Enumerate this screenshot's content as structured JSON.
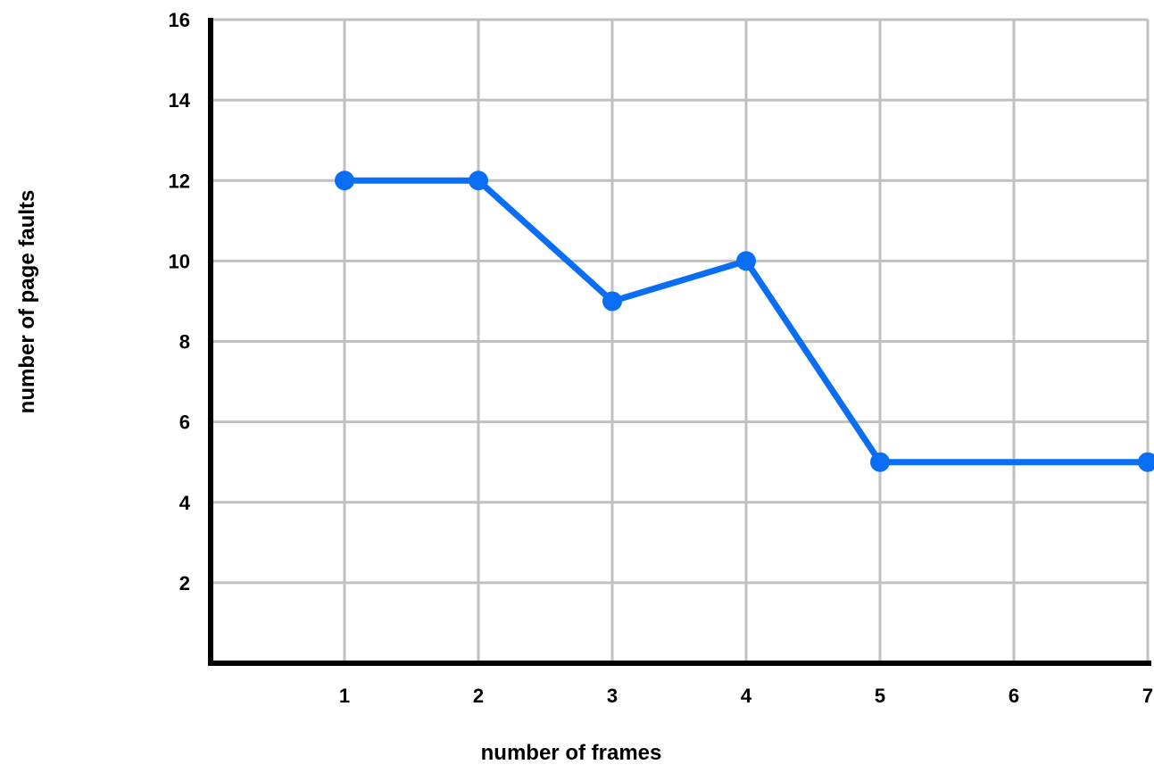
{
  "chart_data": {
    "type": "line",
    "title": "",
    "xlabel": "number of frames",
    "ylabel": "number of page faults",
    "x_ticks": [
      1,
      2,
      3,
      4,
      5,
      6,
      7
    ],
    "y_ticks": [
      2,
      4,
      6,
      8,
      10,
      12,
      14,
      16
    ],
    "xlim": [
      0,
      7
    ],
    "ylim": [
      0,
      16
    ],
    "grid": true,
    "series": [
      {
        "x": [
          1,
          2,
          3,
          4,
          5,
          7
        ],
        "values": [
          12,
          12,
          9,
          10,
          5,
          5
        ],
        "color": "#0a6ef5"
      }
    ],
    "colors": {
      "grid": "#c0c0c0",
      "axis": "#000000",
      "line": "#0a6ef5"
    }
  }
}
